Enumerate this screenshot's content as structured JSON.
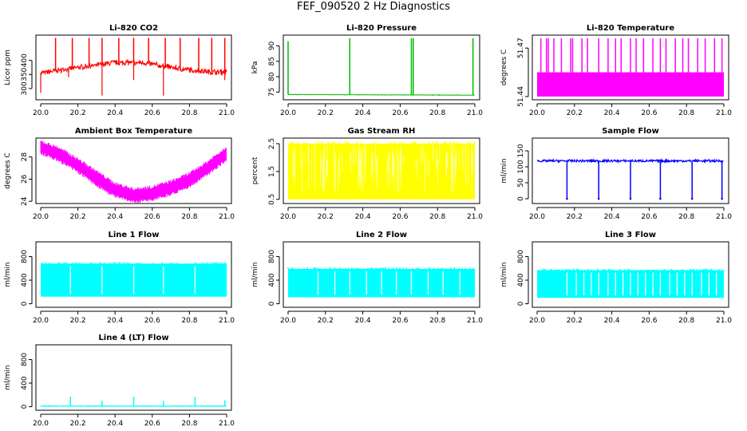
{
  "title": "FEF_090520  2 Hz Diagnostics",
  "colors": {
    "co2": "#ff0000",
    "pressure": "#00bb00",
    "temperature": "#ff00ff",
    "rh": "#ffff00",
    "sample_flow": "#0000ff",
    "line_flow": "#00ffff"
  },
  "chart_data": [
    {
      "type": "line",
      "title": "Li-820 CO2",
      "ylabel": "Licor ppm",
      "color": "#ff0000",
      "xlim": [
        20.0,
        21.0
      ],
      "ylim": [
        260,
        490
      ],
      "x_ticks": [
        "20.0",
        "20.2",
        "20.4",
        "20.6",
        "20.8",
        "21.0"
      ],
      "y_ticks": [
        {
          "v": 300,
          "label": "300"
        },
        {
          "v": 350,
          "label": "350"
        },
        {
          "v": 400,
          "label": "400"
        }
      ],
      "baseline": [
        [
          20.0,
          355
        ],
        [
          20.2,
          375
        ],
        [
          20.4,
          392
        ],
        [
          20.55,
          392
        ],
        [
          20.75,
          370
        ],
        [
          20.9,
          360
        ],
        [
          21.0,
          358
        ]
      ],
      "noise": 10,
      "noise_freq": 0.8,
      "spikes_up": [
        [
          20.08,
          480
        ],
        [
          20.17,
          480
        ],
        [
          20.26,
          480
        ],
        [
          20.33,
          480
        ],
        [
          20.42,
          480
        ],
        [
          20.5,
          480
        ],
        [
          20.58,
          480
        ],
        [
          20.67,
          480
        ],
        [
          20.75,
          480
        ],
        [
          20.85,
          480
        ],
        [
          20.92,
          480
        ],
        [
          20.99,
          480
        ]
      ],
      "spikes_down": [
        [
          20.0,
          285
        ],
        [
          20.15,
          340
        ],
        [
          20.33,
          275
        ],
        [
          20.5,
          330
        ],
        [
          20.66,
          275
        ],
        [
          20.99,
          330
        ]
      ]
    },
    {
      "type": "line",
      "title": "Li-820 Pressure",
      "ylabel": "kPa",
      "color": "#00bb00",
      "xlim": [
        20.0,
        21.0
      ],
      "ylim": [
        72.5,
        93.5
      ],
      "x_ticks": [
        "20.0",
        "20.2",
        "20.4",
        "20.6",
        "20.8",
        "21.0"
      ],
      "y_ticks": [
        {
          "v": 75,
          "label": "75"
        },
        {
          "v": 80,
          "label": "80"
        },
        {
          "v": 85,
          "label": "85"
        },
        {
          "v": 90,
          "label": "90"
        }
      ],
      "baseline": [
        [
          20.0,
          74.2
        ],
        [
          21.0,
          74.0
        ]
      ],
      "noise": 0.15,
      "noise_freq": 0.1,
      "spikes_up": [
        [
          20.0,
          91.5
        ],
        [
          20.33,
          92.5
        ],
        [
          20.66,
          92.5
        ],
        [
          20.67,
          92.5
        ],
        [
          20.99,
          92.5
        ]
      ],
      "spikes_down": []
    },
    {
      "type": "band",
      "title": "Li-820 Temperature",
      "ylabel": "degrees C",
      "color": "#ff00ff",
      "xlim": [
        20.0,
        21.0
      ],
      "ylim": [
        51.438,
        51.478
      ],
      "x_ticks": [
        "20.0",
        "20.2",
        "20.4",
        "20.6",
        "20.8",
        "21.0"
      ],
      "y_ticks": [
        {
          "v": 51.44,
          "label": "51.44"
        },
        {
          "v": 51.47,
          "label": "51.47"
        }
      ],
      "band": [
        51.44,
        51.455
      ],
      "spikes_up": [
        [
          20.02,
          51.476
        ],
        [
          20.05,
          51.476
        ],
        [
          20.06,
          51.476
        ],
        [
          20.09,
          51.476
        ],
        [
          20.13,
          51.476
        ],
        [
          20.18,
          51.476
        ],
        [
          20.19,
          51.476
        ],
        [
          20.24,
          51.476
        ],
        [
          20.27,
          51.476
        ],
        [
          20.33,
          51.476
        ],
        [
          20.38,
          51.476
        ],
        [
          20.42,
          51.476
        ],
        [
          20.45,
          51.476
        ],
        [
          20.5,
          51.476
        ],
        [
          20.53,
          51.476
        ],
        [
          20.57,
          51.476
        ],
        [
          20.62,
          51.476
        ],
        [
          20.66,
          51.476
        ],
        [
          20.69,
          51.476
        ],
        [
          20.74,
          51.476
        ],
        [
          20.78,
          51.476
        ],
        [
          20.81,
          51.476
        ],
        [
          20.86,
          51.476
        ],
        [
          20.9,
          51.476
        ],
        [
          20.95,
          51.476
        ],
        [
          20.99,
          51.476
        ]
      ]
    },
    {
      "type": "band_curve",
      "title": "Ambient Box Temperature",
      "ylabel": "degrees C",
      "color": "#ff00ff",
      "xlim": [
        20.0,
        21.0
      ],
      "ylim": [
        23.8,
        29.7
      ],
      "x_ticks": [
        "20.0",
        "20.2",
        "20.4",
        "20.6",
        "20.8",
        "21.0"
      ],
      "y_ticks": [
        {
          "v": 24,
          "label": "24"
        },
        {
          "v": 26,
          "label": "26"
        },
        {
          "v": 28,
          "label": "28"
        }
      ],
      "upper": [
        [
          20.0,
          29.4
        ],
        [
          20.1,
          28.8
        ],
        [
          20.2,
          27.8
        ],
        [
          20.3,
          26.7
        ],
        [
          20.4,
          25.6
        ],
        [
          20.5,
          25.1
        ],
        [
          20.6,
          25.3
        ],
        [
          20.7,
          25.8
        ],
        [
          20.8,
          26.5
        ],
        [
          20.9,
          27.6
        ],
        [
          21.0,
          28.9
        ]
      ],
      "lower": [
        [
          20.0,
          28.5
        ],
        [
          20.1,
          27.8
        ],
        [
          20.2,
          26.8
        ],
        [
          20.3,
          25.6
        ],
        [
          20.4,
          24.6
        ],
        [
          20.5,
          24.1
        ],
        [
          20.6,
          24.3
        ],
        [
          20.7,
          24.8
        ],
        [
          20.8,
          25.5
        ],
        [
          20.9,
          26.6
        ],
        [
          21.0,
          27.9
        ]
      ]
    },
    {
      "type": "band",
      "title": "Gas Stream RH",
      "ylabel": "percent",
      "color": "#ffff00",
      "xlim": [
        20.0,
        21.0
      ],
      "ylim": [
        0.35,
        2.7
      ],
      "x_ticks": [
        "20.0",
        "20.2",
        "20.4",
        "20.6",
        "20.8",
        "21.0"
      ],
      "y_ticks": [
        {
          "v": 0.5,
          "label": "0.5"
        },
        {
          "v": 1.5,
          "label": "1.5"
        },
        {
          "v": 2.5,
          "label": "2.5"
        }
      ],
      "band": [
        0.5,
        2.5
      ],
      "spikes_up": []
    },
    {
      "type": "flow",
      "title": "Sample Flow",
      "ylabel": "ml/min",
      "color": "#0000ff",
      "xlim": [
        20.0,
        21.0
      ],
      "ylim": [
        -15,
        190
      ],
      "x_ticks": [
        "20.0",
        "20.2",
        "20.4",
        "20.6",
        "20.8",
        "21.0"
      ],
      "y_ticks": [
        {
          "v": 0,
          "label": "0"
        },
        {
          "v": 50,
          "label": "50"
        },
        {
          "v": 100,
          "label": "100"
        },
        {
          "v": 150,
          "label": "150"
        }
      ],
      "level": [
        115,
        122
      ],
      "dips": [
        [
          20.16,
          0
        ],
        [
          20.33,
          0
        ],
        [
          20.5,
          0
        ],
        [
          20.66,
          0
        ],
        [
          20.83,
          0
        ],
        [
          20.99,
          0
        ]
      ]
    },
    {
      "type": "flow_band",
      "title": "Line 1 Flow",
      "ylabel": "ml/min",
      "color": "#00ffff",
      "xlim": [
        20.0,
        21.0
      ],
      "ylim": [
        -60,
        1050
      ],
      "x_ticks": [
        "20.0",
        "20.2",
        "20.4",
        "20.6",
        "20.8",
        "21.0"
      ],
      "y_ticks": [
        {
          "v": 0,
          "label": "0"
        },
        {
          "v": 400,
          "label": "400"
        },
        {
          "v": 800,
          "label": "800"
        }
      ],
      "band": [
        120,
        680
      ],
      "gaps": [
        20.16,
        20.33,
        20.5,
        20.66,
        20.83
      ]
    },
    {
      "type": "flow_band",
      "title": "Line 2 Flow",
      "ylabel": "ml/min",
      "color": "#00ffff",
      "xlim": [
        20.0,
        21.0
      ],
      "ylim": [
        -60,
        1050
      ],
      "x_ticks": [
        "20.0",
        "20.2",
        "20.4",
        "20.6",
        "20.8",
        "21.0"
      ],
      "y_ticks": [
        {
          "v": 0,
          "label": "0"
        },
        {
          "v": 400,
          "label": "400"
        },
        {
          "v": 800,
          "label": "800"
        }
      ],
      "band": [
        110,
        590
      ],
      "gaps": [
        20.16,
        20.25,
        20.33,
        20.42,
        20.5,
        20.58,
        20.66,
        20.75,
        20.83,
        20.92
      ]
    },
    {
      "type": "flow_band",
      "title": "Line 3 Flow",
      "ylabel": "ml/min",
      "color": "#00ffff",
      "xlim": [
        20.0,
        21.0
      ],
      "ylim": [
        -60,
        1050
      ],
      "x_ticks": [
        "20.0",
        "20.2",
        "20.4",
        "20.6",
        "20.8",
        "21.0"
      ],
      "y_ticks": [
        {
          "v": 0,
          "label": "0"
        },
        {
          "v": 400,
          "label": "400"
        },
        {
          "v": 800,
          "label": "800"
        }
      ],
      "band": [
        100,
        570
      ],
      "gaps": [
        20.16,
        20.21,
        20.25,
        20.29,
        20.33,
        20.38,
        20.42,
        20.46,
        20.5,
        20.54,
        20.58,
        20.62,
        20.66,
        20.71,
        20.75,
        20.79,
        20.83,
        20.88,
        20.92,
        20.96
      ]
    },
    {
      "type": "flow",
      "title": "Line 4 (LT) Flow",
      "ylabel": "ml/min",
      "color": "#00ffff",
      "xlim": [
        20.0,
        21.0
      ],
      "ylim": [
        -60,
        1050
      ],
      "x_ticks": [
        "20.0",
        "20.2",
        "20.4",
        "20.6",
        "20.8",
        "21.0"
      ],
      "y_ticks": [
        {
          "v": 0,
          "label": "0"
        },
        {
          "v": 400,
          "label": "400"
        },
        {
          "v": 800,
          "label": "800"
        }
      ],
      "level": [
        5,
        15
      ],
      "spikes": [
        [
          20.16,
          170
        ],
        [
          20.33,
          100
        ],
        [
          20.5,
          170
        ],
        [
          20.66,
          100
        ],
        [
          20.83,
          170
        ],
        [
          20.99,
          110
        ]
      ]
    }
  ]
}
